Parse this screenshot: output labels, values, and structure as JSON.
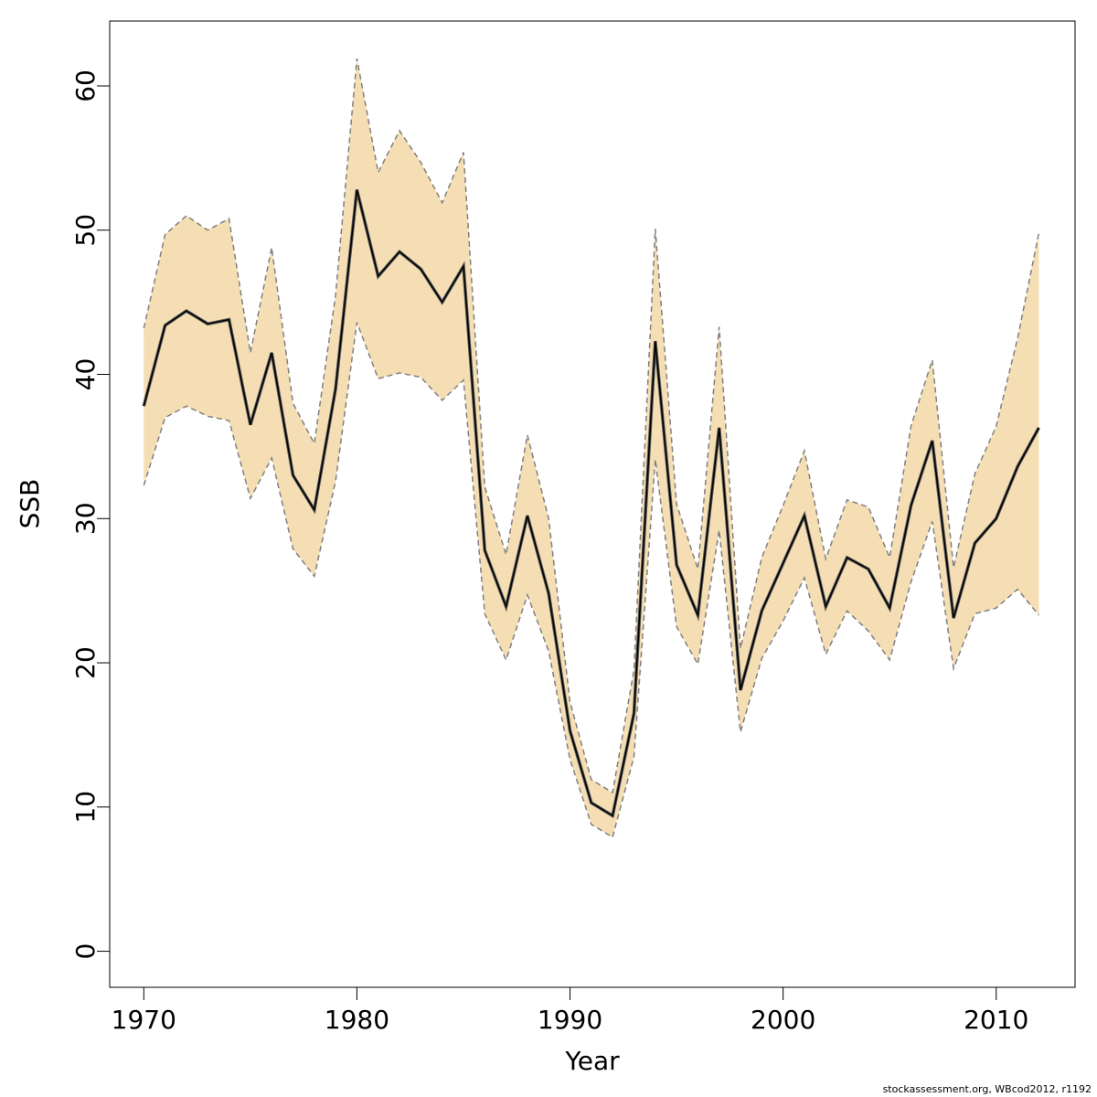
{
  "chart_data": {
    "type": "line",
    "xlabel": "Year",
    "ylabel": "SSB",
    "xlim": [
      1968.4,
      2013.7
    ],
    "ylim": [
      -2.5,
      64.5
    ],
    "x_ticks": [
      1970,
      1980,
      1990,
      2000,
      2010
    ],
    "y_ticks": [
      0,
      10,
      20,
      30,
      40,
      50,
      60
    ],
    "grid": false,
    "colors": {
      "band": "#f5deb3",
      "line": "#000000",
      "bound": "#808080"
    },
    "x": [
      1970,
      1971,
      1972,
      1973,
      1974,
      1975,
      1976,
      1977,
      1978,
      1979,
      1980,
      1981,
      1982,
      1983,
      1984,
      1985,
      1986,
      1987,
      1988,
      1989,
      1990,
      1991,
      1992,
      1993,
      1994,
      1995,
      1996,
      1997,
      1998,
      1999,
      2000,
      2001,
      2002,
      2003,
      2004,
      2005,
      2006,
      2007,
      2008,
      2009,
      2010,
      2011,
      2012
    ],
    "series": [
      {
        "values": [
          37.8,
          43.4,
          44.4,
          43.5,
          43.8,
          36.5,
          41.5,
          33.0,
          30.6,
          39.0,
          52.8,
          46.8,
          48.5,
          47.3,
          45.0,
          47.5,
          27.8,
          23.9,
          30.2,
          24.8,
          15.3,
          10.3,
          9.4,
          16.5,
          42.3,
          26.8,
          23.3,
          36.3,
          18.1,
          23.6,
          26.9,
          30.2,
          23.9,
          27.3,
          26.5,
          23.8,
          30.9,
          35.4,
          23.1,
          28.3,
          30.0,
          33.6,
          36.3
        ]
      }
    ],
    "band_upper": [
      43.2,
      49.7,
      51.0,
      50.0,
      50.8,
      41.5,
      48.8,
      38.0,
      35.2,
      45.5,
      61.9,
      54.0,
      56.9,
      54.7,
      51.9,
      55.4,
      32.2,
      27.5,
      35.8,
      30.0,
      17.3,
      11.9,
      11.0,
      19.5,
      50.1,
      31.0,
      26.5,
      43.3,
      21.0,
      27.3,
      30.9,
      34.7,
      27.2,
      31.3,
      30.8,
      27.3,
      36.4,
      41.0,
      26.6,
      33.1,
      36.4,
      42.5,
      49.8
    ],
    "band_lower": [
      32.3,
      37.0,
      37.8,
      37.1,
      36.8,
      31.4,
      34.2,
      27.9,
      26.0,
      32.6,
      43.6,
      39.7,
      40.1,
      39.8,
      38.2,
      39.6,
      23.4,
      20.2,
      24.7,
      20.8,
      13.3,
      8.8,
      7.9,
      13.5,
      34.1,
      22.5,
      19.9,
      29.2,
      15.2,
      20.3,
      22.9,
      25.9,
      20.6,
      23.6,
      22.2,
      20.2,
      25.6,
      29.8,
      19.6,
      23.4,
      23.8,
      25.1,
      23.3
    ]
  },
  "footer": "stockassessment.org, WBcod2012, r1192"
}
